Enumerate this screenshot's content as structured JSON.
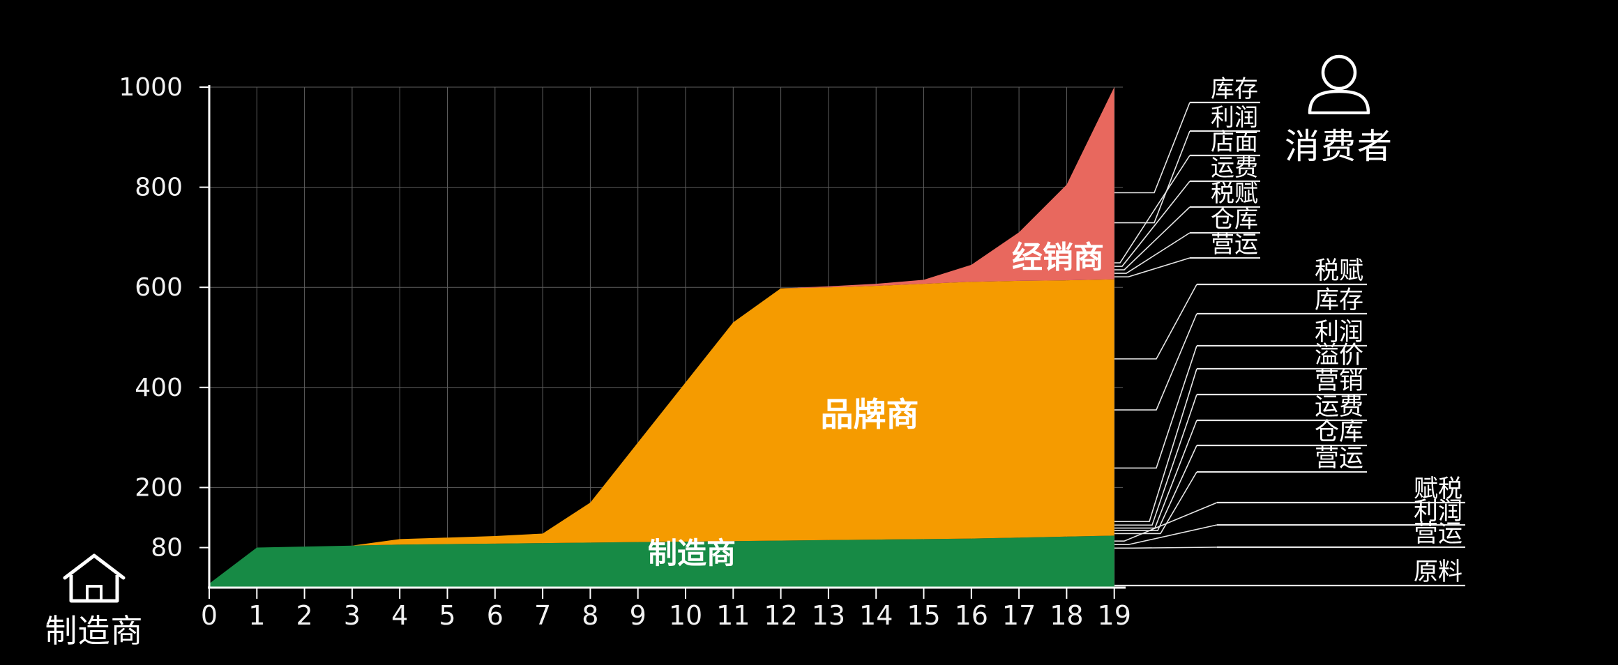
{
  "background": "#000000",
  "chart_data": {
    "type": "area",
    "stacked": true,
    "title": "",
    "xlabel": "",
    "ylabel": "",
    "x": [
      0,
      1,
      2,
      3,
      4,
      5,
      6,
      7,
      8,
      9,
      10,
      11,
      12,
      13,
      14,
      15,
      16,
      17,
      18,
      19
    ],
    "xticks": [
      0,
      1,
      2,
      3,
      4,
      5,
      6,
      7,
      8,
      9,
      10,
      11,
      12,
      13,
      14,
      15,
      16,
      17,
      18,
      19
    ],
    "yticks": [
      80,
      200,
      400,
      600,
      800,
      1000
    ],
    "ylim": [
      0,
      1000
    ],
    "grid": true,
    "legend_position": "none",
    "series": [
      {
        "name": "制造商",
        "role": "manufacturer",
        "color": "#178A45",
        "cumulative_top": [
          8,
          80,
          82,
          84,
          86,
          87,
          88,
          89,
          90,
          91,
          92,
          93,
          94,
          95,
          96,
          97,
          98,
          100,
          102,
          104
        ]
      },
      {
        "name": "品牌商",
        "role": "brand",
        "color": "#F59B00",
        "start_x": 3,
        "cumulative_top": [
          null,
          null,
          null,
          84,
          97,
          100,
          103,
          108,
          170,
          290,
          410,
          530,
          598,
          600,
          603,
          607,
          611,
          613,
          614,
          616
        ]
      },
      {
        "name": "经销商",
        "role": "distributor",
        "color": "#E8685E",
        "start_x": 12,
        "cumulative_top": [
          null,
          null,
          null,
          null,
          null,
          null,
          null,
          null,
          null,
          null,
          null,
          null,
          598,
          602,
          607,
          615,
          645,
          710,
          805,
          1000
        ]
      }
    ]
  },
  "area_labels": [
    {
      "id": "manufacturer",
      "text": "制造商"
    },
    {
      "id": "brand",
      "text": "品牌商"
    },
    {
      "id": "distributor",
      "text": "经销商"
    }
  ],
  "callouts": {
    "distributor_items": [
      {
        "label": "库存",
        "boundary_value": 789
      },
      {
        "label": "利润",
        "boundary_value": 729
      },
      {
        "label": "店面",
        "boundary_value": 649
      },
      {
        "label": "运费",
        "boundary_value": 642
      },
      {
        "label": "税赋",
        "boundary_value": 635
      },
      {
        "label": "仓库",
        "boundary_value": 628
      },
      {
        "label": "营运",
        "boundary_value": 621
      }
    ],
    "brand_items": [
      {
        "label": "税赋",
        "boundary_value": 457
      },
      {
        "label": "库存",
        "boundary_value": 355
      },
      {
        "label": "利润",
        "boundary_value": 239
      },
      {
        "label": "溢价",
        "boundary_value": 132
      },
      {
        "label": "营销",
        "boundary_value": 125
      },
      {
        "label": "运费",
        "boundary_value": 119
      },
      {
        "label": "仓库",
        "boundary_value": 114
      },
      {
        "label": "营运",
        "boundary_value": 108
      }
    ],
    "manufacturer_items": [
      {
        "label": "赋税",
        "boundary_value": 93
      },
      {
        "label": "利润",
        "boundary_value": 86
      },
      {
        "label": "营运",
        "boundary_value": 79
      },
      {
        "label": "原料",
        "boundary_value": 4
      }
    ]
  },
  "endpoints": {
    "consumer_label": "消费者",
    "manufacturer_label": "制造商"
  },
  "colors": {
    "grid": "#5f5f5f",
    "axis": "#ffffff",
    "callout_line": "#e6e6e6",
    "text": "#f2f2f2",
    "area_label_text": "#ffffff"
  }
}
